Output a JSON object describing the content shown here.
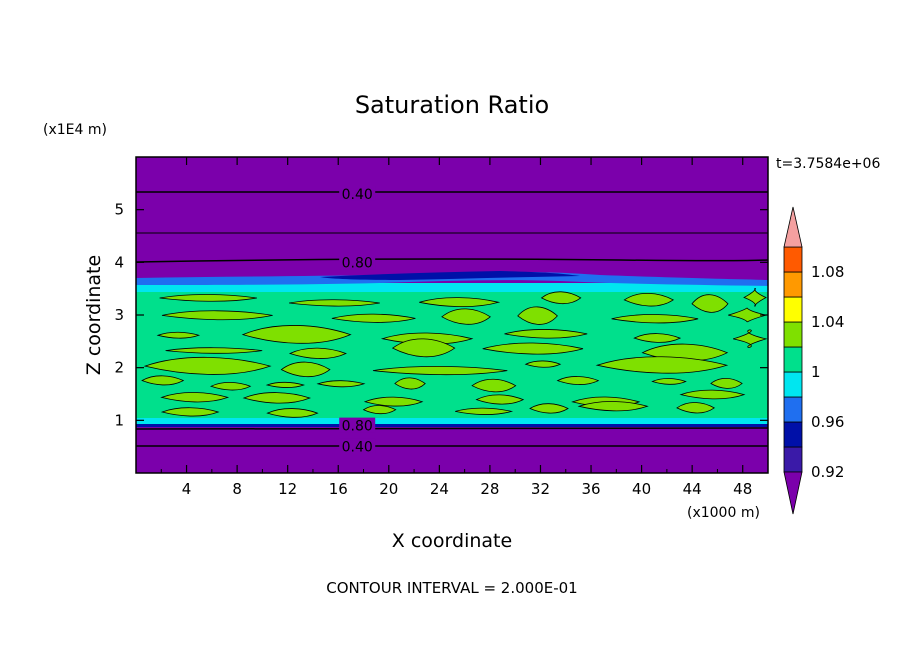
{
  "chart_data": {
    "type": "heatmap",
    "title": "Saturation Ratio",
    "xlabel": "X coordinate",
    "ylabel": "Z coordinate",
    "x_unit_label": "(x1000 m)",
    "y_unit_label": "(x1E4 m)",
    "time_label": "t=3.7584e+06",
    "footer": "CONTOUR INTERVAL = 2.000E-01",
    "xlim": [
      0,
      50
    ],
    "ylim": [
      0,
      6
    ],
    "x_ticks": [
      "4",
      "8",
      "12",
      "16",
      "20",
      "24",
      "28",
      "32",
      "36",
      "40",
      "44",
      "48"
    ],
    "x_tick_values": [
      4,
      8,
      12,
      16,
      20,
      24,
      28,
      32,
      36,
      40,
      44,
      48
    ],
    "y_ticks": [
      "1",
      "2",
      "3",
      "4",
      "5"
    ],
    "y_tick_values": [
      1,
      2,
      3,
      4,
      5
    ],
    "contour_labels": [
      {
        "text": "0.40",
        "x": 17.5,
        "y": 5.3
      },
      {
        "text": "0.80",
        "x": 17.5,
        "y": 4.0
      },
      {
        "text": "0.80",
        "x": 17.5,
        "y": 0.9
      },
      {
        "text": "0.40",
        "x": 17.5,
        "y": 0.5
      }
    ],
    "colorbar": {
      "levels": [
        0.92,
        0.94,
        0.96,
        0.98,
        1.0,
        1.02,
        1.04,
        1.06,
        1.08,
        1.1
      ],
      "tick_labels": [
        "0.92",
        "0.96",
        "1",
        "1.04",
        "1.08"
      ],
      "tick_values": [
        0.92,
        0.96,
        1.0,
        1.04,
        1.08
      ],
      "colors": [
        "#7b00ab",
        "#3a1aa8",
        "#0010a8",
        "#1f6ff0",
        "#00e6f0",
        "#00e08c",
        "#7fe000",
        "#ffff00",
        "#ff9900",
        "#ff5a00",
        "#ff2020",
        "#f4a0a0"
      ]
    },
    "bands_z": [
      {
        "from": 0.0,
        "to": 0.95,
        "value": "< 0.92"
      },
      {
        "from": 0.95,
        "to": 3.6,
        "value": "0.98 - 1.02"
      },
      {
        "from": 3.6,
        "to": 3.75,
        "value": "0.92 - 0.96"
      },
      {
        "from": 3.75,
        "to": 6.0,
        "value": "< 0.92"
      }
    ]
  }
}
